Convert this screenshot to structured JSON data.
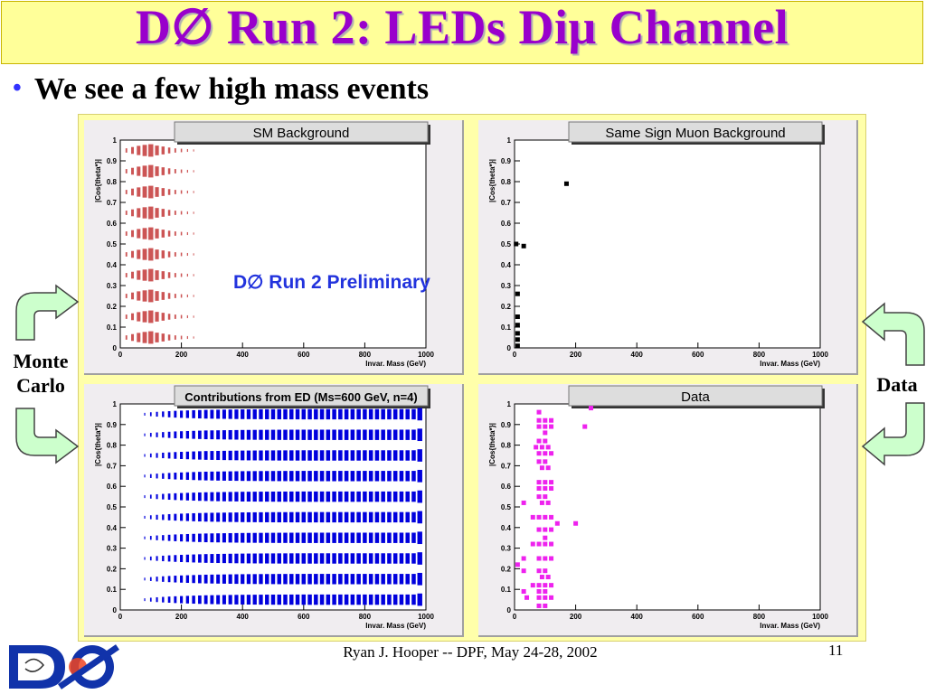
{
  "slide": {
    "title": "D∅ Run 2: LEDs Diμ Channel",
    "bullet": "We see a few high mass events",
    "preliminary": "D∅ Run 2 Preliminary",
    "left_label": "Monte\nCarlo",
    "right_label": "Data",
    "footer": "Ryan J. Hooper -- DPF, May 24-28, 2002",
    "page_number": "11"
  },
  "colors": {
    "title": "#9900cc",
    "title_bar": "#ffff99",
    "bullet_dot": "#3333ff",
    "preliminary": "#2233dd",
    "arrow_fill": "#ccffcc",
    "sm_background": "#cc5555",
    "same_sign": "#000000",
    "ed_contribution": "#0000dd",
    "data": "#ee22ee"
  },
  "icons": {
    "logo": "d0-logo-icon",
    "arrows": [
      "curved-arrow-down-right-icon",
      "curved-arrow-up-right-icon",
      "curved-arrow-down-left-icon",
      "curved-arrow-up-left-icon"
    ]
  },
  "chart_data": [
    {
      "type": "heatmap",
      "title": "SM Background",
      "xlabel": "Invar. Mass (GeV)",
      "ylabel": "|Cos{theta*}|",
      "xlim": [
        0,
        1000
      ],
      "ylim": [
        0,
        1
      ],
      "xticks": [
        "0",
        "200",
        "400",
        "600",
        "800",
        "1000"
      ],
      "yticks": [
        "0",
        "0.1",
        "0.2",
        "0.3",
        "0.4",
        "0.5",
        "0.6",
        "0.7",
        "0.8",
        "0.9",
        "1"
      ],
      "x_centers": [
        20,
        40,
        60,
        80,
        100,
        120,
        140,
        160,
        180,
        200,
        220,
        240
      ],
      "row_profile": [
        0.12,
        0.3,
        0.55,
        0.8,
        1.0,
        0.6,
        0.4,
        0.22,
        0.12,
        0.08,
        0.05,
        0.03
      ],
      "color": "#cc5555"
    },
    {
      "type": "scatter",
      "title": "Same Sign Muon Background",
      "xlabel": "Invar. Mass (GeV)",
      "ylabel": "|Cos{theta*}|",
      "xlim": [
        0,
        1000
      ],
      "ylim": [
        0,
        1
      ],
      "xticks": [
        "0",
        "200",
        "400",
        "600",
        "800",
        "1000"
      ],
      "yticks": [
        "0",
        "0.1",
        "0.2",
        "0.3",
        "0.4",
        "0.5",
        "0.6",
        "0.7",
        "0.8",
        "0.9",
        "1"
      ],
      "x": [
        170,
        30,
        10,
        10,
        10,
        10,
        10,
        10,
        5
      ],
      "y": [
        0.79,
        0.49,
        0.26,
        0.15,
        0.11,
        0.07,
        0.04,
        0.01,
        0.5
      ],
      "color": "#000000"
    },
    {
      "type": "heatmap",
      "title": "Contributions from ED (Ms=600 GeV, n=4)",
      "xlabel": "Invar. Mass (GeV)",
      "ylabel": "|Cos{theta*}|",
      "xlim": [
        0,
        1000
      ],
      "ylim": [
        0,
        1
      ],
      "xticks": [
        "0",
        "200",
        "400",
        "600",
        "800",
        "1000"
      ],
      "yticks": [
        "0",
        "0.1",
        "0.2",
        "0.3",
        "0.4",
        "0.5",
        "0.6",
        "0.7",
        "0.8",
        "0.9",
        "1"
      ],
      "x_centers": [
        80,
        100,
        120,
        140,
        160,
        180,
        200,
        220,
        240,
        260,
        280,
        300,
        320,
        340,
        360,
        380,
        400,
        420,
        440,
        460,
        480,
        500,
        520,
        540,
        560,
        580,
        600,
        620,
        640,
        660,
        680,
        700,
        720,
        740,
        760,
        780,
        800,
        820,
        840,
        860,
        880,
        900,
        920,
        940,
        960,
        980
      ],
      "row_profile": [
        0.05,
        0.1,
        0.15,
        0.2,
        0.25,
        0.3,
        0.34,
        0.38,
        0.42,
        0.46,
        0.5,
        0.52,
        0.54,
        0.56,
        0.58,
        0.6,
        0.62,
        0.63,
        0.64,
        0.65,
        0.66,
        0.67,
        0.68,
        0.68,
        0.69,
        0.69,
        0.7,
        0.7,
        0.7,
        0.7,
        0.7,
        0.7,
        0.7,
        0.7,
        0.7,
        0.7,
        0.7,
        0.7,
        0.7,
        0.7,
        0.7,
        0.7,
        0.7,
        0.7,
        0.7,
        1.0
      ],
      "color": "#0000dd"
    },
    {
      "type": "scatter",
      "title": "Data",
      "xlabel": "Invar. Mass (GeV)",
      "ylabel": "|Cos{theta*}|",
      "xlim": [
        0,
        1000
      ],
      "ylim": [
        0,
        1
      ],
      "xticks": [
        "0",
        "200",
        "400",
        "600",
        "800",
        "1000"
      ],
      "yticks": [
        "0",
        "0.1",
        "0.2",
        "0.3",
        "0.4",
        "0.5",
        "0.6",
        "0.7",
        "0.8",
        "0.9",
        "1"
      ],
      "x": [
        250,
        230,
        200,
        80,
        80,
        100,
        120,
        80,
        100,
        120,
        100,
        80,
        100,
        70,
        90,
        110,
        80,
        100,
        120,
        80,
        100,
        90,
        110,
        80,
        100,
        120,
        30,
        80,
        100,
        120,
        140,
        80,
        100,
        90,
        110,
        60,
        80,
        100,
        120,
        80,
        100,
        120,
        60,
        80,
        100,
        120,
        100,
        30,
        80,
        100,
        120,
        80,
        100,
        90,
        110,
        30,
        60,
        80,
        100,
        120,
        10,
        30,
        80,
        100,
        40,
        80,
        100,
        120,
        80,
        100
      ],
      "y": [
        0.98,
        0.89,
        0.42,
        0.96,
        0.92,
        0.92,
        0.92,
        0.89,
        0.89,
        0.89,
        0.86,
        0.82,
        0.82,
        0.79,
        0.79,
        0.79,
        0.76,
        0.76,
        0.76,
        0.72,
        0.72,
        0.69,
        0.69,
        0.62,
        0.62,
        0.62,
        0.52,
        0.59,
        0.59,
        0.59,
        0.42,
        0.55,
        0.55,
        0.52,
        0.52,
        0.45,
        0.45,
        0.45,
        0.45,
        0.39,
        0.39,
        0.39,
        0.32,
        0.32,
        0.32,
        0.32,
        0.35,
        0.25,
        0.25,
        0.25,
        0.25,
        0.19,
        0.19,
        0.16,
        0.16,
        0.19,
        0.12,
        0.12,
        0.12,
        0.12,
        0.22,
        0.09,
        0.09,
        0.09,
        0.06,
        0.06,
        0.06,
        0.06,
        0.02,
        0.02
      ],
      "color": "#ee22ee"
    }
  ]
}
